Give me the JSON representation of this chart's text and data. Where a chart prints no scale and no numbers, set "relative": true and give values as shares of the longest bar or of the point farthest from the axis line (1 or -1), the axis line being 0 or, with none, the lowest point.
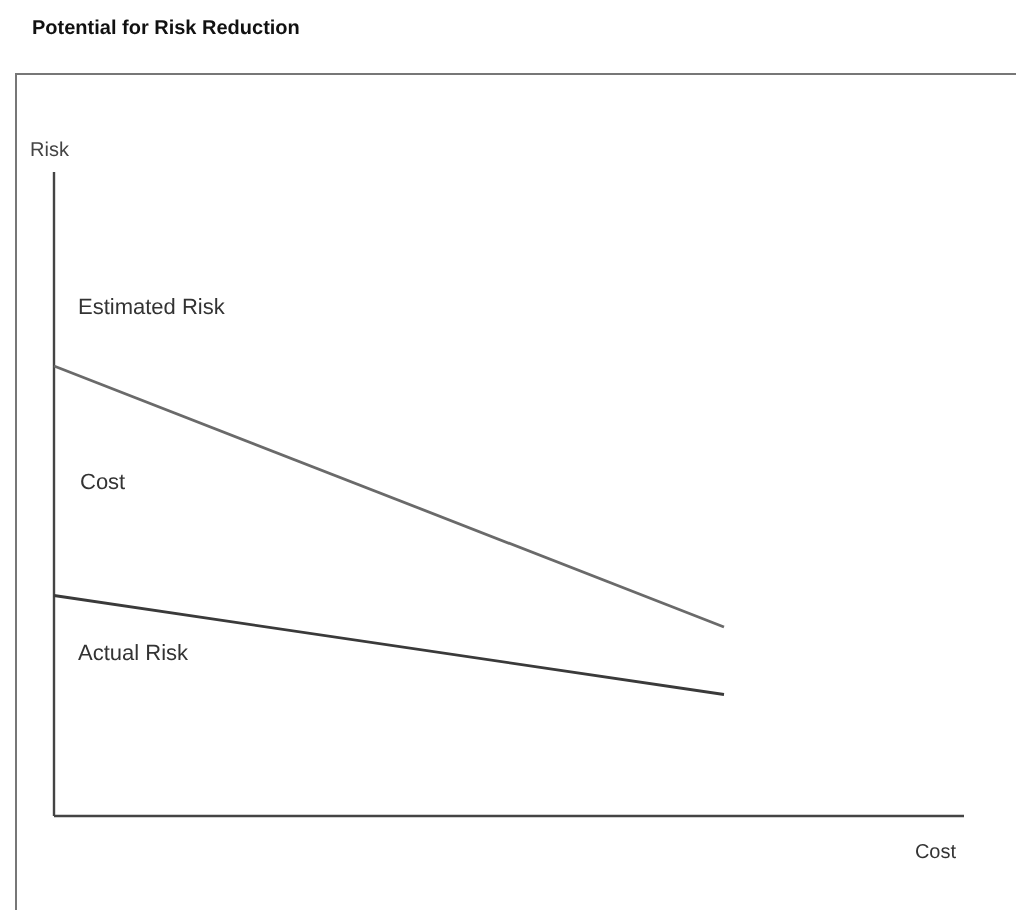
{
  "chart_data": {
    "type": "line",
    "title": "Potential for Risk Reduction",
    "xlabel": "Cost",
    "relative": true,
    "categories": [
      null,
      null
    ],
    "series": [
      {
        "name": "Estimated Risk",
        "color": "#6a6a6a",
        "values": [
          1,
          0.42
        ]
      },
      {
        "name": "Actual Risk",
        "color": "#3a3a3a",
        "values": [
          0.49,
          0.27
        ]
      }
    ],
    "annotations": [
      "Risk",
      "Cost"
    ],
    "marker": "none",
    "line_style": "solid"
  }
}
